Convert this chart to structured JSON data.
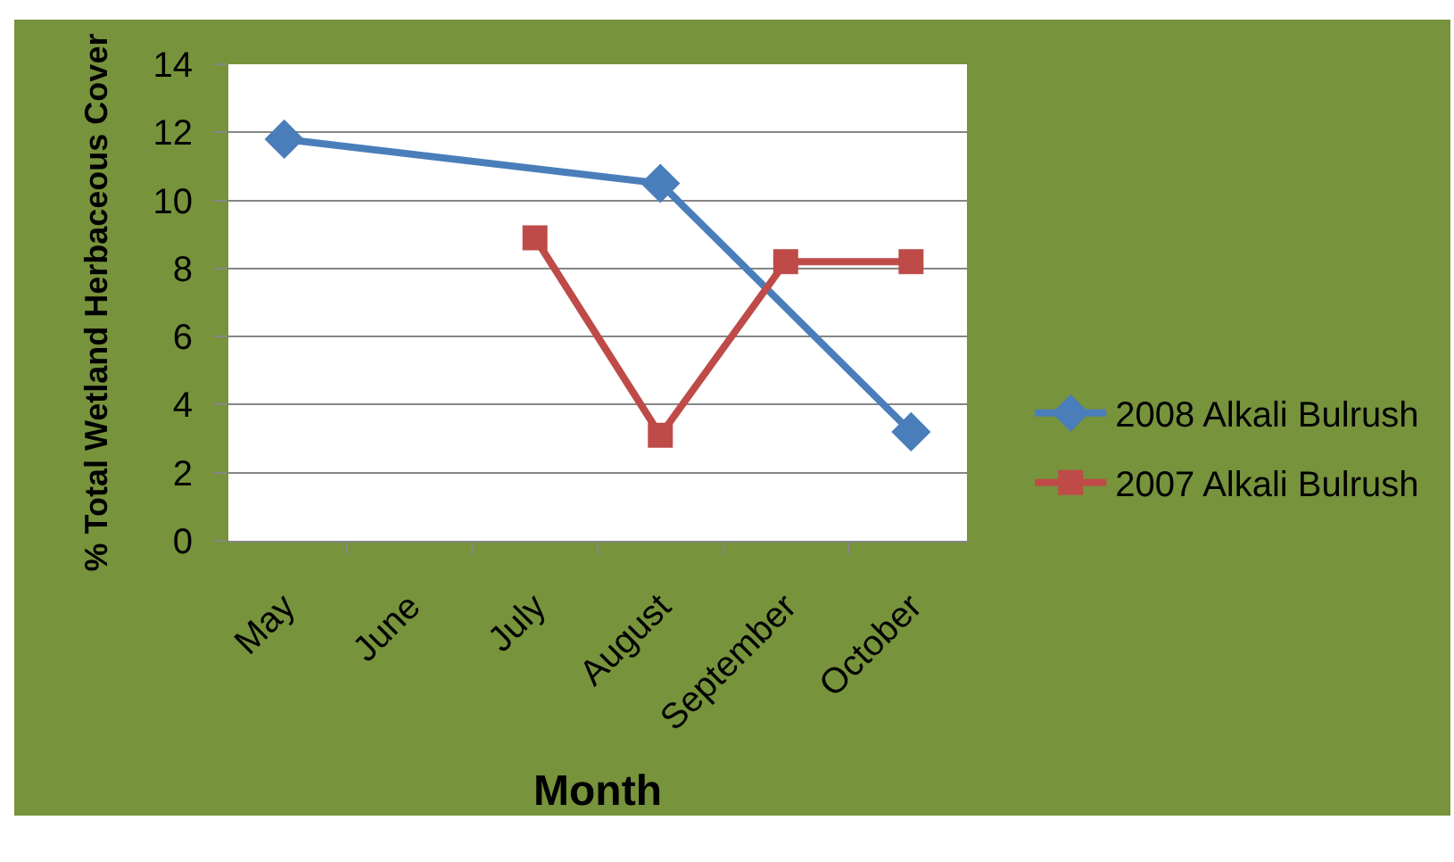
{
  "chart_data": {
    "type": "line",
    "xlabel": "Month",
    "ylabel": "% Total Wetland Herbaceous Cover",
    "categories": [
      "May",
      "June",
      "July",
      "August",
      "September",
      "October"
    ],
    "series": [
      {
        "name": "2008 Alkali Bulrush",
        "color": "#4a7ebb",
        "marker": "diamond",
        "x": [
          "May",
          "August",
          "October"
        ],
        "values": [
          11.8,
          10.5,
          3.2
        ]
      },
      {
        "name": "2007 Alkali Bulrush",
        "color": "#be4b48",
        "marker": "square",
        "x": [
          "July",
          "August",
          "September",
          "October"
        ],
        "values": [
          8.9,
          3.1,
          8.2,
          8.2
        ]
      }
    ],
    "ylim": [
      0,
      14
    ],
    "yticks": [
      0,
      2,
      4,
      6,
      8,
      10,
      12,
      14
    ],
    "grid": "y",
    "legend": "right"
  }
}
